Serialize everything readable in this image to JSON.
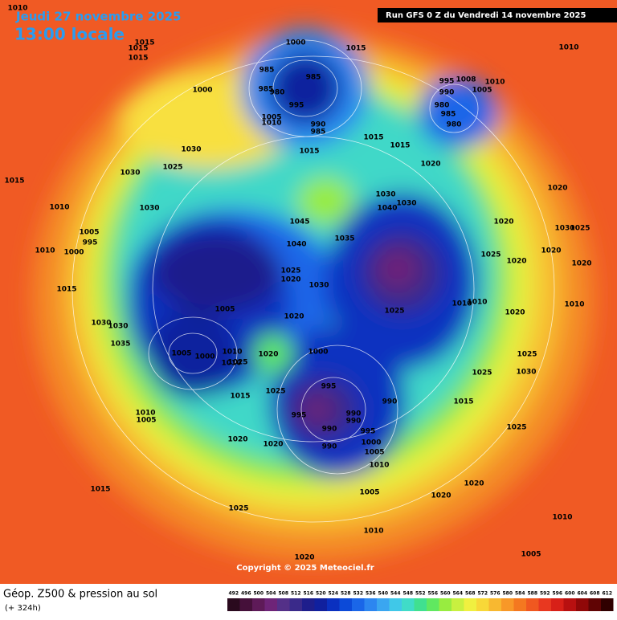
{
  "header": {
    "date": "Jeudi 27 novembre 2025",
    "time": "13:00 locale",
    "run": "Run GFS 0 Z du Vendredi 14 novembre 2025"
  },
  "map": {
    "isobar_labels": [
      1010,
      1015,
      1015,
      1015,
      1000,
      1015,
      1010,
      985,
      985,
      985,
      980,
      995,
      1005,
      1010,
      990,
      985,
      995,
      1008,
      1010,
      990,
      1005,
      980,
      985,
      980,
      1000,
      1030,
      1015,
      1015,
      1015,
      1020,
      1025,
      1030,
      1015,
      1030,
      1040,
      1030,
      1010,
      1030,
      1020,
      1045,
      1020,
      1005,
      995,
      1040,
      1035,
      1010,
      1000,
      1030,
      1025,
      1025,
      1020,
      1020,
      1025,
      1020,
      1030,
      1020,
      1015,
      1005,
      1025,
      1010,
      1010,
      1010,
      1020,
      1020,
      1030,
      1030,
      1035,
      1000,
      1005,
      1000,
      1010,
      1010,
      1025,
      1020,
      1025,
      1030,
      1025,
      995,
      1025,
      1015,
      990,
      1015,
      1010,
      1005,
      995,
      990,
      990,
      990,
      995,
      1025,
      1020,
      1020,
      990,
      1000,
      1005,
      1010,
      1020,
      1015,
      1005,
      1020,
      1025,
      1010,
      1010,
      1005,
      1020
    ],
    "copyright": "Copyright © 2025 Meteociel.fr"
  },
  "legend": {
    "title": "Géop. Z500 & pression au sol",
    "subtitle": "(+ 324h)",
    "ticks": [
      492,
      496,
      500,
      504,
      508,
      512,
      516,
      520,
      524,
      528,
      532,
      536,
      540,
      544,
      548,
      552,
      556,
      560,
      564,
      568,
      572,
      576,
      580,
      584,
      588,
      592,
      596,
      600,
      604,
      608,
      612
    ],
    "colors": [
      "#2a0a1e",
      "#45103a",
      "#5e1a58",
      "#6e2478",
      "#543088",
      "#3a2a8a",
      "#1e1e8c",
      "#10209e",
      "#0a30c0",
      "#0c4ad8",
      "#1a66e8",
      "#2c86f0",
      "#3aa6f0",
      "#40c8e8",
      "#40dcc8",
      "#40e090",
      "#60e860",
      "#98ec40",
      "#c8f040",
      "#f0f040",
      "#f8d838",
      "#f8b830",
      "#f89828",
      "#f47820",
      "#f05820",
      "#e83820",
      "#d82018",
      "#b81010",
      "#900808",
      "#600404",
      "#300000"
    ]
  }
}
